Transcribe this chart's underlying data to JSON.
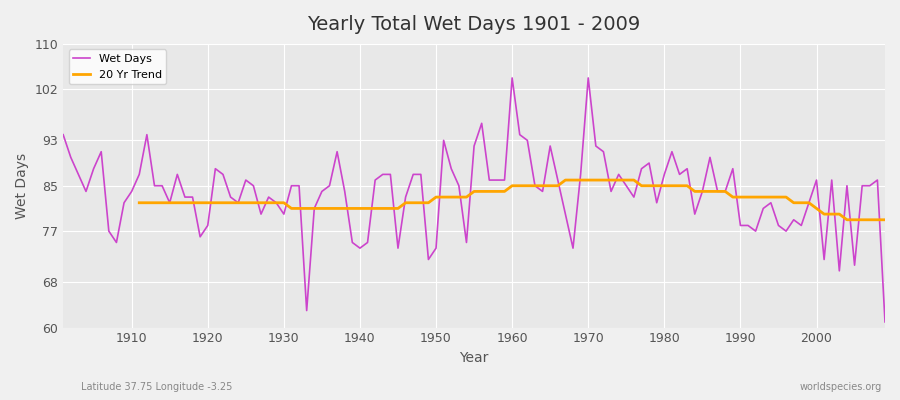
{
  "title": "Yearly Total Wet Days 1901 - 2009",
  "xlabel": "Year",
  "ylabel": "Wet Days",
  "subtitle_left": "Latitude 37.75 Longitude -3.25",
  "subtitle_right": "worldspecies.org",
  "ylim": [
    60,
    110
  ],
  "xlim": [
    1901,
    2009
  ],
  "yticks": [
    60,
    68,
    77,
    85,
    93,
    102,
    110
  ],
  "xticks": [
    1910,
    1920,
    1930,
    1940,
    1950,
    1960,
    1970,
    1980,
    1990,
    2000
  ],
  "wet_days_color": "#cc44cc",
  "trend_color": "#ffa500",
  "background_color": "#e8e8e8",
  "legend_wet": "Wet Days",
  "legend_trend": "20 Yr Trend",
  "years": [
    1901,
    1902,
    1903,
    1904,
    1905,
    1906,
    1907,
    1908,
    1909,
    1910,
    1911,
    1912,
    1913,
    1914,
    1915,
    1916,
    1917,
    1918,
    1919,
    1920,
    1921,
    1922,
    1923,
    1924,
    1925,
    1926,
    1927,
    1928,
    1929,
    1930,
    1931,
    1932,
    1933,
    1934,
    1935,
    1936,
    1937,
    1938,
    1939,
    1940,
    1941,
    1942,
    1943,
    1944,
    1945,
    1946,
    1947,
    1948,
    1949,
    1950,
    1951,
    1952,
    1953,
    1954,
    1955,
    1956,
    1957,
    1958,
    1959,
    1960,
    1961,
    1962,
    1963,
    1964,
    1965,
    1966,
    1967,
    1968,
    1969,
    1970,
    1971,
    1972,
    1973,
    1974,
    1975,
    1976,
    1977,
    1978,
    1979,
    1980,
    1981,
    1982,
    1983,
    1984,
    1985,
    1986,
    1987,
    1988,
    1989,
    1990,
    1991,
    1992,
    1993,
    1994,
    1995,
    1996,
    1997,
    1998,
    1999,
    2000,
    2001,
    2002,
    2003,
    2004,
    2005,
    2006,
    2007,
    2008,
    2009
  ],
  "wet_days": [
    94,
    90,
    87,
    84,
    88,
    91,
    77,
    75,
    82,
    84,
    87,
    94,
    85,
    85,
    82,
    87,
    83,
    83,
    76,
    78,
    88,
    87,
    83,
    82,
    86,
    85,
    80,
    83,
    82,
    80,
    85,
    85,
    63,
    81,
    84,
    85,
    91,
    84,
    75,
    74,
    75,
    86,
    87,
    87,
    74,
    83,
    87,
    87,
    72,
    74,
    93,
    88,
    85,
    75,
    92,
    96,
    86,
    86,
    86,
    104,
    94,
    93,
    85,
    84,
    92,
    86,
    80,
    74,
    87,
    104,
    92,
    91,
    84,
    87,
    85,
    83,
    88,
    89,
    82,
    87,
    91,
    87,
    88,
    80,
    84,
    90,
    84,
    84,
    88,
    78,
    78,
    77,
    81,
    82,
    78,
    77,
    79,
    78,
    82,
    86,
    72,
    86,
    70,
    85,
    71,
    85,
    85,
    86,
    61
  ],
  "trend_years": [
    1911,
    1912,
    1913,
    1914,
    1915,
    1916,
    1917,
    1918,
    1919,
    1920,
    1921,
    1922,
    1923,
    1924,
    1925,
    1926,
    1927,
    1928,
    1929,
    1930,
    1931,
    1932,
    1933,
    1934,
    1935,
    1936,
    1937,
    1938,
    1939,
    1940,
    1941,
    1942,
    1943,
    1944,
    1945,
    1946,
    1947,
    1948,
    1949,
    1950,
    1951,
    1952,
    1953,
    1954,
    1955,
    1956,
    1957,
    1958,
    1959,
    1960,
    1961,
    1962,
    1963,
    1964,
    1965,
    1966,
    1967,
    1968,
    1969,
    1970,
    1971,
    1972,
    1973,
    1974,
    1975,
    1976,
    1977,
    1978,
    1979,
    1980,
    1981,
    1982,
    1983,
    1984,
    1985,
    1986,
    1987,
    1988,
    1989,
    1990,
    1991,
    1992,
    1993,
    1994,
    1995,
    1996,
    1997,
    1998,
    1999,
    2000,
    2001,
    2002,
    2003,
    2004,
    2005,
    2006,
    2007,
    2008,
    2009
  ],
  "trend_values": [
    82,
    82,
    82,
    82,
    82,
    82,
    82,
    82,
    82,
    82,
    82,
    82,
    82,
    82,
    82,
    82,
    82,
    82,
    82,
    82,
    81,
    81,
    81,
    81,
    81,
    81,
    81,
    81,
    81,
    81,
    81,
    81,
    81,
    81,
    81,
    82,
    82,
    82,
    82,
    83,
    83,
    83,
    83,
    83,
    84,
    84,
    84,
    84,
    84,
    85,
    85,
    85,
    85,
    85,
    85,
    85,
    86,
    86,
    86,
    86,
    86,
    86,
    86,
    86,
    86,
    86,
    85,
    85,
    85,
    85,
    85,
    85,
    85,
    84,
    84,
    84,
    84,
    84,
    83,
    83,
    83,
    83,
    83,
    83,
    83,
    83,
    82,
    82,
    82,
    81,
    80,
    80,
    80,
    79,
    79,
    79,
    79,
    79,
    79
  ]
}
